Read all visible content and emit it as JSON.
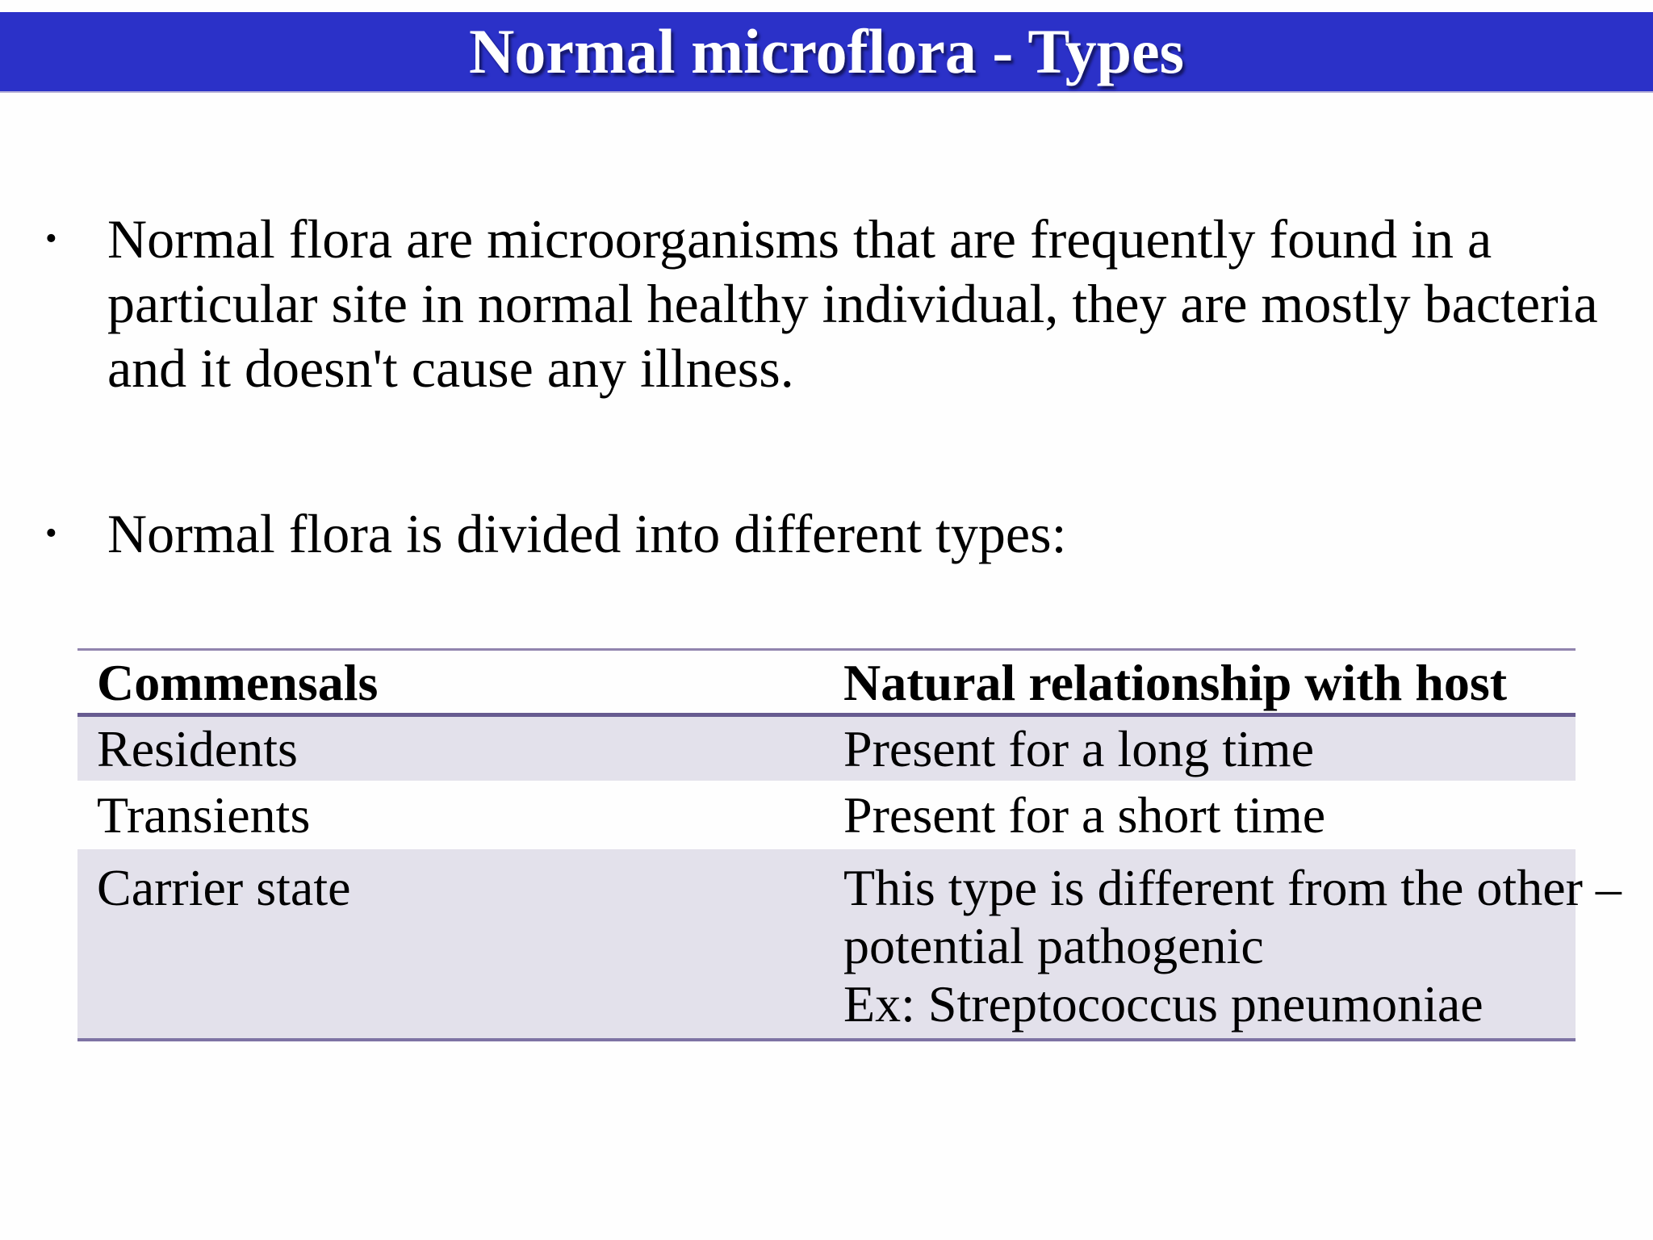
{
  "title": "Normal microflora - Types",
  "bullet_glyph": "•",
  "bullets": [
    {
      "lines": [
        "Normal flora are microorganisms that are frequently found in a",
        "particular site in normal healthy individual, they are mostly bacteria",
        "and it doesn't cause any illness."
      ]
    },
    {
      "lines": [
        "Normal flora is divided into different types:"
      ]
    }
  ],
  "table": {
    "headers": [
      "Commensals",
      "Natural relationship with host"
    ],
    "rows": [
      {
        "commensal": "Residents",
        "relationship_lines": [
          "Present for a long time"
        ]
      },
      {
        "commensal": "Transients",
        "relationship_lines": [
          "Present for a short time"
        ]
      },
      {
        "commensal": "Carrier state",
        "relationship_lines": [
          "This type is different from the other –",
          "potential pathogenic",
          "Ex: Streptococcus pneumoniae"
        ]
      }
    ]
  },
  "colors": {
    "banner_blue": "#2b31c8",
    "row_shade": "#e3e1eb",
    "border_purple": "#7e73a4",
    "header_underline": "#675b90",
    "text": "#000000"
  }
}
